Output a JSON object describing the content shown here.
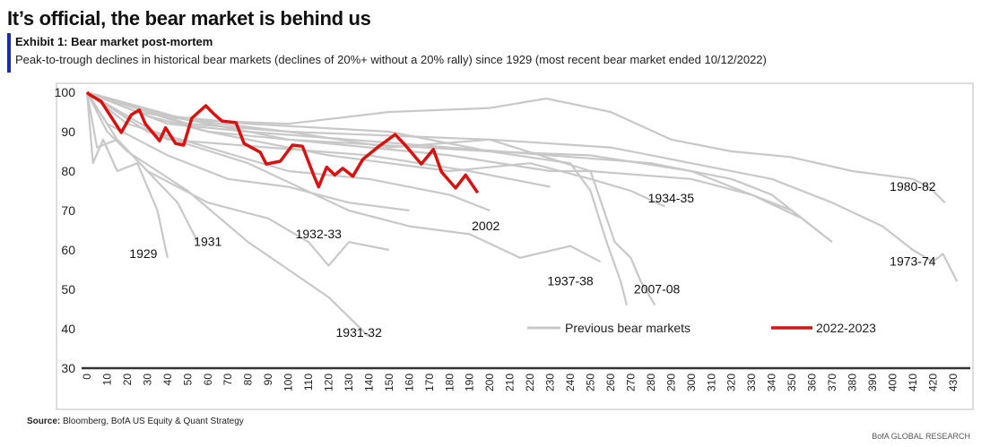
{
  "header": {
    "title": "It’s official, the bear market is behind us",
    "exhibit": "Exhibit 1: Bear market post-mortem",
    "subtitle": "Peak-to-trough declines in historical bear markets (declines of 20%+ without a 20% rally) since 1929 (most recent bear market ended 10/12/2022)"
  },
  "footer": {
    "source_label": "Source:",
    "source_text": " Bloomberg, BofA US Equity & Quant Strategy",
    "brand": "BofA GLOBAL RESEARCH"
  },
  "chart_data": {
    "type": "line",
    "xlim": [
      0,
      435
    ],
    "ylim": [
      30,
      100
    ],
    "xticks": [
      0,
      10,
      20,
      30,
      40,
      50,
      60,
      70,
      80,
      90,
      100,
      110,
      120,
      130,
      140,
      150,
      160,
      170,
      180,
      190,
      200,
      210,
      220,
      230,
      240,
      250,
      260,
      270,
      280,
      290,
      300,
      310,
      320,
      330,
      340,
      350,
      360,
      370,
      380,
      390,
      400,
      410,
      420,
      430
    ],
    "yticks": [
      30,
      40,
      50,
      60,
      70,
      80,
      90,
      100
    ],
    "grid": false,
    "legend": {
      "placement": "bottom-center",
      "entries": [
        "Previous bear markets",
        "2022-2023"
      ]
    },
    "colors": {
      "previous": "#c8c8c8",
      "current": "#d9120f",
      "axis": "#333333"
    },
    "annotations": [
      {
        "text": "1929",
        "x": 28,
        "y": 58
      },
      {
        "text": "1931",
        "x": 60,
        "y": 61
      },
      {
        "text": "1931-32",
        "x": 135,
        "y": 38
      },
      {
        "text": "1932-33",
        "x": 115,
        "y": 63
      },
      {
        "text": "2002",
        "x": 198,
        "y": 65
      },
      {
        "text": "1937-38",
        "x": 240,
        "y": 51
      },
      {
        "text": "2007-08",
        "x": 283,
        "y": 49
      },
      {
        "text": "1934-35",
        "x": 290,
        "y": 72
      },
      {
        "text": "1980-82",
        "x": 410,
        "y": 75
      },
      {
        "text": "1973-74",
        "x": 410,
        "y": 56
      }
    ],
    "series": [
      {
        "name": "2022-2023",
        "current": true,
        "points": [
          [
            0,
            100
          ],
          [
            1,
            99.5
          ],
          [
            7,
            97.7
          ],
          [
            17,
            89.8
          ],
          [
            22,
            94.3
          ],
          [
            26,
            95.5
          ],
          [
            29,
            92
          ],
          [
            36,
            87.7
          ],
          [
            39,
            91
          ],
          [
            44,
            87
          ],
          [
            48,
            86.6
          ],
          [
            52,
            93.4
          ],
          [
            59,
            96.6
          ],
          [
            63,
            94.5
          ],
          [
            67,
            92.7
          ],
          [
            74,
            92.3
          ],
          [
            78,
            87
          ],
          [
            86,
            84.8
          ],
          [
            89,
            81.8
          ],
          [
            96,
            82.5
          ],
          [
            102,
            86.6
          ],
          [
            107,
            86.3
          ],
          [
            113,
            78.4
          ],
          [
            115,
            76
          ],
          [
            119,
            81
          ],
          [
            123,
            79
          ],
          [
            127,
            80.7
          ],
          [
            132,
            78.7
          ],
          [
            137,
            83
          ],
          [
            145,
            86.3
          ],
          [
            153,
            89.3
          ],
          [
            158,
            86.6
          ],
          [
            166,
            81.8
          ],
          [
            172,
            85.5
          ],
          [
            176,
            79.8
          ],
          [
            183,
            75.7
          ],
          [
            188,
            79
          ],
          [
            194,
            74.5
          ]
        ]
      },
      {
        "points": [
          [
            0,
            100
          ],
          [
            25,
            95
          ],
          [
            50,
            93
          ],
          [
            100,
            92
          ],
          [
            150,
            95
          ],
          [
            200,
            96
          ],
          [
            228,
            98.4
          ],
          [
            260,
            95
          ],
          [
            290,
            88
          ],
          [
            320,
            85
          ],
          [
            349,
            83.6
          ],
          [
            380,
            80
          ],
          [
            410,
            78
          ],
          [
            418,
            76
          ],
          [
            426,
            72
          ]
        ]
      },
      {
        "points": [
          [
            0,
            100
          ],
          [
            50,
            93
          ],
          [
            100,
            90
          ],
          [
            150,
            89
          ],
          [
            200,
            88
          ],
          [
            260,
            86
          ],
          [
            300,
            82
          ],
          [
            340,
            78
          ],
          [
            370,
            72
          ],
          [
            395,
            66
          ],
          [
            410,
            60
          ],
          [
            420,
            57
          ],
          [
            425,
            59
          ],
          [
            432,
            52
          ]
        ]
      },
      {
        "points": [
          [
            0,
            100
          ],
          [
            30,
            94
          ],
          [
            60,
            90
          ],
          [
            120,
            84
          ],
          [
            180,
            80
          ],
          [
            220,
            82
          ],
          [
            250,
            78
          ],
          [
            270,
            75
          ],
          [
            287,
            71
          ]
        ]
      },
      {
        "points": [
          [
            0,
            100
          ],
          [
            40,
            94
          ],
          [
            80,
            92
          ],
          [
            150,
            90
          ],
          [
            200,
            85
          ],
          [
            240,
            82
          ],
          [
            250,
            75
          ],
          [
            258,
            62
          ],
          [
            265,
            52
          ],
          [
            268,
            46
          ]
        ]
      },
      {
        "points": [
          [
            0,
            100
          ],
          [
            50,
            93
          ],
          [
            100,
            88
          ],
          [
            180,
            84
          ],
          [
            230,
            80
          ],
          [
            250,
            80
          ],
          [
            262,
            62
          ],
          [
            270,
            58
          ],
          [
            275,
            52
          ],
          [
            282,
            46
          ]
        ]
      },
      {
        "points": [
          [
            0,
            100
          ],
          [
            30,
            90
          ],
          [
            80,
            82
          ],
          [
            130,
            70
          ],
          [
            160,
            66
          ],
          [
            190,
            64
          ],
          [
            215,
            58
          ],
          [
            240,
            61
          ],
          [
            255,
            57
          ]
        ]
      },
      {
        "points": [
          [
            0,
            100
          ],
          [
            60,
            90
          ],
          [
            100,
            88
          ],
          [
            200,
            85
          ],
          [
            250,
            84
          ],
          [
            300,
            80
          ],
          [
            350,
            70
          ],
          [
            370,
            62
          ]
        ]
      },
      {
        "points": [
          [
            0,
            100
          ],
          [
            40,
            92
          ],
          [
            80,
            90
          ],
          [
            180,
            86
          ],
          [
            280,
            82
          ],
          [
            320,
            78
          ],
          [
            340,
            74
          ],
          [
            365,
            64
          ]
        ]
      },
      {
        "points": [
          [
            0,
            100
          ],
          [
            50,
            92
          ],
          [
            100,
            90
          ],
          [
            150,
            86
          ],
          [
            200,
            88
          ],
          [
            250,
            80
          ],
          [
            300,
            78
          ],
          [
            330,
            74
          ],
          [
            355,
            68
          ]
        ]
      },
      {
        "points": [
          [
            0,
            100
          ],
          [
            40,
            88
          ],
          [
            90,
            86
          ],
          [
            140,
            84
          ],
          [
            190,
            80
          ],
          [
            230,
            76
          ]
        ]
      },
      {
        "points": [
          [
            0,
            100
          ],
          [
            3,
            82
          ],
          [
            8,
            88
          ],
          [
            15,
            80
          ],
          [
            25,
            82
          ],
          [
            35,
            70
          ],
          [
            40,
            58
          ]
        ]
      },
      {
        "points": [
          [
            0,
            100
          ],
          [
            5,
            86
          ],
          [
            15,
            88
          ],
          [
            30,
            80
          ],
          [
            45,
            72
          ],
          [
            55,
            62
          ]
        ]
      },
      {
        "points": [
          [
            0,
            100
          ],
          [
            10,
            90
          ],
          [
            20,
            85
          ],
          [
            50,
            75
          ],
          [
            80,
            62
          ],
          [
            100,
            55
          ],
          [
            120,
            48
          ],
          [
            140,
            38
          ]
        ]
      },
      {
        "points": [
          [
            0,
            100
          ],
          [
            15,
            88
          ],
          [
            30,
            80
          ],
          [
            60,
            72
          ],
          [
            90,
            68
          ],
          [
            110,
            62
          ],
          [
            120,
            56
          ],
          [
            130,
            62
          ],
          [
            150,
            60
          ]
        ]
      },
      {
        "points": [
          [
            0,
            100
          ],
          [
            20,
            92
          ],
          [
            60,
            86
          ],
          [
            100,
            80
          ],
          [
            140,
            78
          ],
          [
            180,
            74
          ],
          [
            200,
            70
          ]
        ]
      },
      {
        "points": [
          [
            0,
            100
          ],
          [
            10,
            92
          ],
          [
            40,
            84
          ],
          [
            70,
            78
          ],
          [
            100,
            76
          ],
          [
            130,
            72
          ],
          [
            160,
            70
          ]
        ]
      }
    ]
  }
}
